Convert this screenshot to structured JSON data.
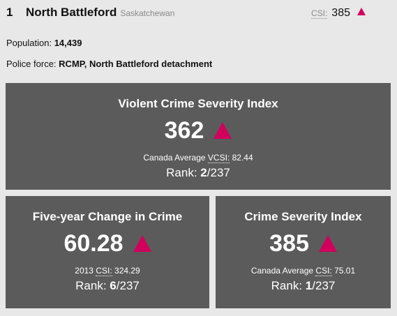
{
  "header": {
    "rank": "1",
    "city": "North Battleford",
    "province": "Saskatchewan",
    "csi_label": "CSI:",
    "csi_value": "385"
  },
  "info": {
    "population_label": "Population:",
    "population_value": "14,439",
    "police_label": "Police force:",
    "police_value": "RCMP, North Battleford detachment"
  },
  "cards": {
    "violent": {
      "title": "Violent Crime Severity Index",
      "value": "362",
      "trend": "up",
      "avg_prefix": "Canada Average",
      "avg_abbr": "VCSI:",
      "avg_value": "82.44",
      "rank_label": "Rank:",
      "rank": "2",
      "rank_total": "/237"
    },
    "change": {
      "title": "Five-year Change in Crime",
      "value": "60.28",
      "trend": "up",
      "avg_prefix": "2013",
      "avg_abbr": "CSI:",
      "avg_value": "324.29",
      "rank_label": "Rank:",
      "rank": "6",
      "rank_total": "/237"
    },
    "csi": {
      "title": "Crime Severity Index",
      "value": "385",
      "trend": "up",
      "avg_prefix": "Canada Average",
      "avg_abbr": "CSI:",
      "avg_value": "75.01",
      "rank_label": "Rank:",
      "rank": "1",
      "rank_total": "/237"
    }
  },
  "colors": {
    "accent": "#d1005d",
    "card_bg": "#5b5b5b",
    "page_bg": "#e8e8e8"
  },
  "icons": {
    "trend_up": "triangle-up-icon"
  }
}
